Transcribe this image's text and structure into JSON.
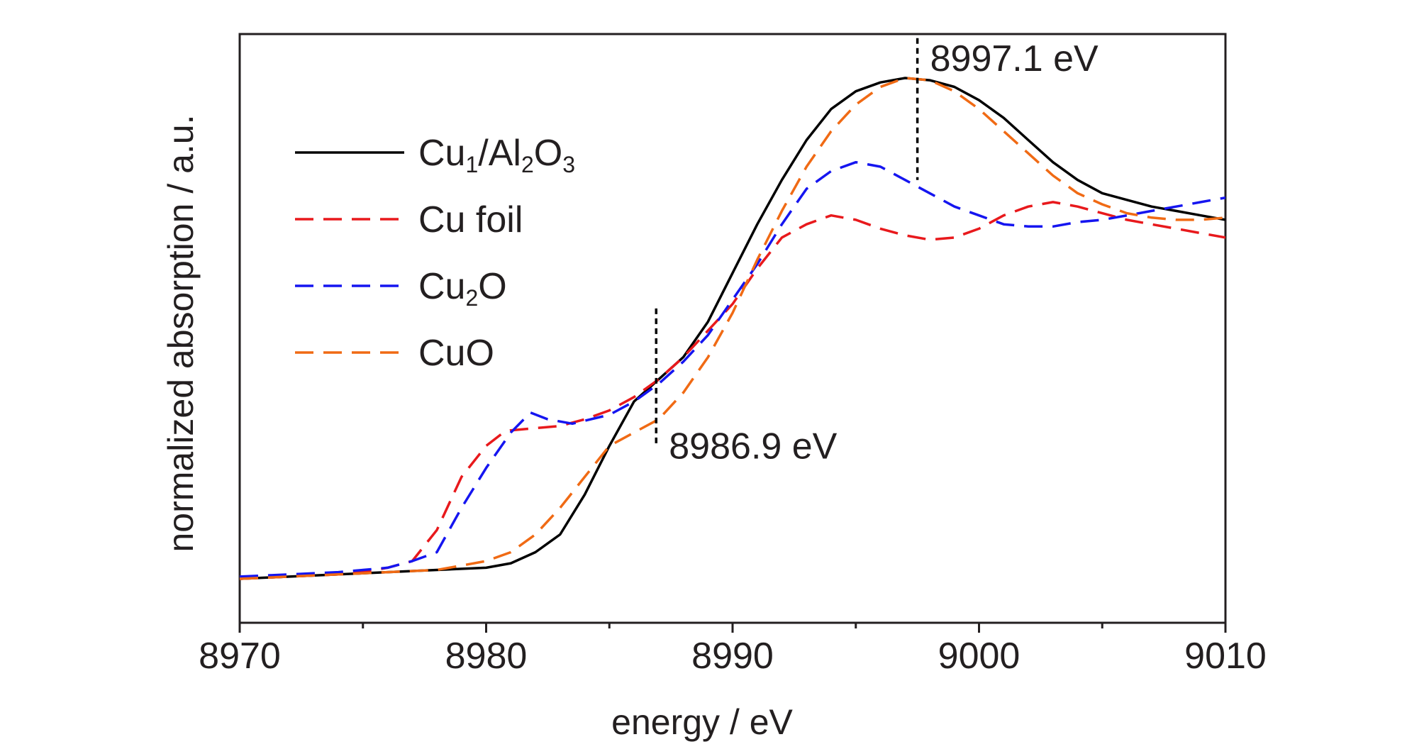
{
  "chart_data": {
    "type": "line",
    "xlabel": "energy / eV",
    "ylabel": "normalized absorption / a.u.",
    "xlim": [
      8970,
      9010
    ],
    "ylim": [
      0,
      1.2
    ],
    "x_ticks": [
      "8970",
      "8980",
      "8990",
      "9000",
      "9010"
    ],
    "y_ticks": [],
    "grid": false,
    "legend_position": "upper-left",
    "series": [
      {
        "name": "Cu1/Al2O3",
        "legend": {
          "base": "Cu",
          "sub1": "1",
          "mid": "/Al",
          "sub2": "2",
          "end": "O",
          "sub3": "3"
        },
        "color": "#000000",
        "dash": "solid",
        "points": [
          [
            8970,
            0.0
          ],
          [
            8974,
            0.01
          ],
          [
            8976,
            0.015
          ],
          [
            8978,
            0.02
          ],
          [
            8980,
            0.025
          ],
          [
            8981,
            0.035
          ],
          [
            8982,
            0.06
          ],
          [
            8983,
            0.1
          ],
          [
            8984,
            0.19
          ],
          [
            8985,
            0.3
          ],
          [
            8986,
            0.4
          ],
          [
            8987,
            0.45
          ],
          [
            8988,
            0.5
          ],
          [
            8989,
            0.58
          ],
          [
            8990,
            0.69
          ],
          [
            8991,
            0.8
          ],
          [
            8992,
            0.9
          ],
          [
            8993,
            0.99
          ],
          [
            8994,
            1.06
          ],
          [
            8995,
            1.1
          ],
          [
            8996,
            1.12
          ],
          [
            8997,
            1.13
          ],
          [
            8998,
            1.125
          ],
          [
            8999,
            1.11
          ],
          [
            9000,
            1.08
          ],
          [
            9001,
            1.04
          ],
          [
            9002,
            0.99
          ],
          [
            9003,
            0.94
          ],
          [
            9004,
            0.9
          ],
          [
            9005,
            0.87
          ],
          [
            9006,
            0.855
          ],
          [
            9007,
            0.84
          ],
          [
            9008,
            0.83
          ],
          [
            9009,
            0.82
          ],
          [
            9010,
            0.81
          ]
        ]
      },
      {
        "name": "Cu foil",
        "color": "#e8191c",
        "dash": "dashed",
        "points": [
          [
            8970,
            0.0
          ],
          [
            8972,
            0.005
          ],
          [
            8974,
            0.01
          ],
          [
            8975,
            0.015
          ],
          [
            8976,
            0.025
          ],
          [
            8977,
            0.04
          ],
          [
            8978,
            0.11
          ],
          [
            8979,
            0.23
          ],
          [
            8980,
            0.3
          ],
          [
            8980.7,
            0.33
          ],
          [
            8981,
            0.335
          ],
          [
            8982,
            0.34
          ],
          [
            8983,
            0.345
          ],
          [
            8984,
            0.36
          ],
          [
            8985,
            0.38
          ],
          [
            8986,
            0.41
          ],
          [
            8987,
            0.45
          ],
          [
            8988,
            0.5
          ],
          [
            8989,
            0.56
          ],
          [
            8990,
            0.62
          ],
          [
            8991,
            0.7
          ],
          [
            8992,
            0.77
          ],
          [
            8993,
            0.8
          ],
          [
            8994,
            0.82
          ],
          [
            8995,
            0.81
          ],
          [
            8996,
            0.79
          ],
          [
            8997,
            0.775
          ],
          [
            8998,
            0.765
          ],
          [
            8999,
            0.77
          ],
          [
            9000,
            0.79
          ],
          [
            9001,
            0.82
          ],
          [
            9002,
            0.84
          ],
          [
            9003,
            0.85
          ],
          [
            9004,
            0.84
          ],
          [
            9005,
            0.825
          ],
          [
            9006,
            0.81
          ],
          [
            9007,
            0.8
          ],
          [
            9008,
            0.79
          ],
          [
            9009,
            0.78
          ],
          [
            9010,
            0.77
          ]
        ]
      },
      {
        "name": "Cu2O",
        "legend": {
          "base": "Cu",
          "sub1": "2",
          "end": "O"
        },
        "color": "#1515f0",
        "dash": "dashed",
        "points": [
          [
            8970,
            0.005
          ],
          [
            8972,
            0.01
          ],
          [
            8974,
            0.015
          ],
          [
            8975,
            0.02
          ],
          [
            8976,
            0.025
          ],
          [
            8977,
            0.04
          ],
          [
            8978,
            0.06
          ],
          [
            8979,
            0.16
          ],
          [
            8980,
            0.25
          ],
          [
            8981,
            0.33
          ],
          [
            8981.8,
            0.375
          ],
          [
            8982.5,
            0.36
          ],
          [
            8983.5,
            0.35
          ],
          [
            8985,
            0.37
          ],
          [
            8986,
            0.4
          ],
          [
            8987,
            0.44
          ],
          [
            8988,
            0.49
          ],
          [
            8989,
            0.55
          ],
          [
            8990,
            0.63
          ],
          [
            8991,
            0.71
          ],
          [
            8992,
            0.8
          ],
          [
            8993,
            0.88
          ],
          [
            8994,
            0.92
          ],
          [
            8995,
            0.94
          ],
          [
            8996,
            0.93
          ],
          [
            8997,
            0.9
          ],
          [
            8998,
            0.87
          ],
          [
            8999,
            0.84
          ],
          [
            9000,
            0.82
          ],
          [
            9001,
            0.8
          ],
          [
            9002,
            0.795
          ],
          [
            9003,
            0.795
          ],
          [
            9004,
            0.805
          ],
          [
            9005,
            0.81
          ],
          [
            9006,
            0.82
          ],
          [
            9007,
            0.83
          ],
          [
            9008,
            0.84
          ],
          [
            9009,
            0.85
          ],
          [
            9010,
            0.86
          ]
        ]
      },
      {
        "name": "CuO",
        "color": "#f06a14",
        "dash": "dashed",
        "points": [
          [
            8970,
            0.0
          ],
          [
            8974,
            0.01
          ],
          [
            8976,
            0.015
          ],
          [
            8978,
            0.02
          ],
          [
            8979,
            0.03
          ],
          [
            8980,
            0.04
          ],
          [
            8981,
            0.06
          ],
          [
            8982,
            0.1
          ],
          [
            8983,
            0.16
          ],
          [
            8984,
            0.23
          ],
          [
            8985,
            0.3
          ],
          [
            8986,
            0.33
          ],
          [
            8987,
            0.36
          ],
          [
            8988,
            0.42
          ],
          [
            8989,
            0.5
          ],
          [
            8990,
            0.6
          ],
          [
            8991,
            0.72
          ],
          [
            8992,
            0.83
          ],
          [
            8993,
            0.93
          ],
          [
            8994,
            1.01
          ],
          [
            8995,
            1.07
          ],
          [
            8996,
            1.11
          ],
          [
            8997,
            1.13
          ],
          [
            8998,
            1.125
          ],
          [
            8999,
            1.1
          ],
          [
            9000,
            1.06
          ],
          [
            9001,
            1.01
          ],
          [
            9002,
            0.96
          ],
          [
            9003,
            0.91
          ],
          [
            9004,
            0.87
          ],
          [
            9005,
            0.845
          ],
          [
            9006,
            0.825
          ],
          [
            9007,
            0.815
          ],
          [
            9008,
            0.81
          ],
          [
            9009,
            0.81
          ],
          [
            9010,
            0.815
          ]
        ]
      }
    ],
    "annotations": [
      {
        "label": "8997.1 eV",
        "x": 8997.5,
        "y_top": 1.22,
        "y_bottom": 0.9,
        "label_side": "right-top"
      },
      {
        "label": "8986.9 eV",
        "x": 8986.9,
        "y_top": 0.61,
        "y_bottom": 0.3,
        "label_side": "right-bottom"
      }
    ]
  }
}
